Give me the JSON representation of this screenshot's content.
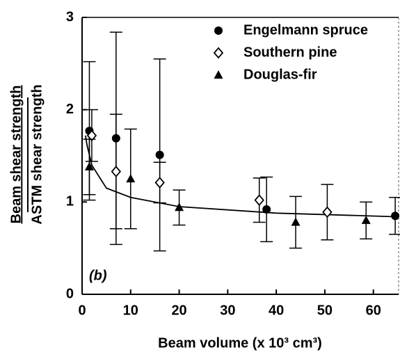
{
  "chart_data": {
    "type": "scatter",
    "xlabel": "Beam volume (x 10³ cm³)",
    "ylabel_top": "Beam shear strength",
    "ylabel_bottom": "ASTM shear strength",
    "annotation": "(b)",
    "xlim": [
      0,
      65.2
    ],
    "ylim": [
      0,
      3
    ],
    "xticks": [
      0,
      10,
      20,
      30,
      40,
      50,
      60
    ],
    "yticks": [
      0,
      1,
      2,
      3
    ],
    "legend": "upper right",
    "series": [
      {
        "name": "Engelmann spruce",
        "color": "#000000",
        "marker": "circle",
        "x": [
          1.5,
          7,
          16,
          38,
          64.5
        ],
        "values": [
          1.77,
          1.69,
          1.51,
          0.92,
          0.85
        ],
        "errors": [
          0.75,
          1.15,
          1.04,
          0.35,
          0.2
        ]
      },
      {
        "name": "Southern pine",
        "color": "#000000",
        "marker": "diamond",
        "x": [
          2,
          7,
          16,
          36.5,
          50.5
        ],
        "values": [
          1.72,
          1.33,
          1.21,
          1.02,
          0.89
        ],
        "errors": [
          0.28,
          0.62,
          0.22,
          0.24,
          0.3
        ]
      },
      {
        "name": "Douglas-fir",
        "color": "#000000",
        "marker": "triangle",
        "x": [
          1.5,
          10,
          20,
          44,
          58.5
        ],
        "values": [
          1.38,
          1.25,
          0.94,
          0.78,
          0.8
        ],
        "errors": [
          0.3,
          0.54,
          0.19,
          0.28,
          0.2
        ]
      }
    ],
    "curve": {
      "x": [
        0.7,
        1,
        2,
        5,
        10,
        20,
        40,
        65.2
      ],
      "values": [
        1.72,
        1.62,
        1.4,
        1.15,
        1.05,
        0.95,
        0.88,
        0.84
      ]
    }
  }
}
